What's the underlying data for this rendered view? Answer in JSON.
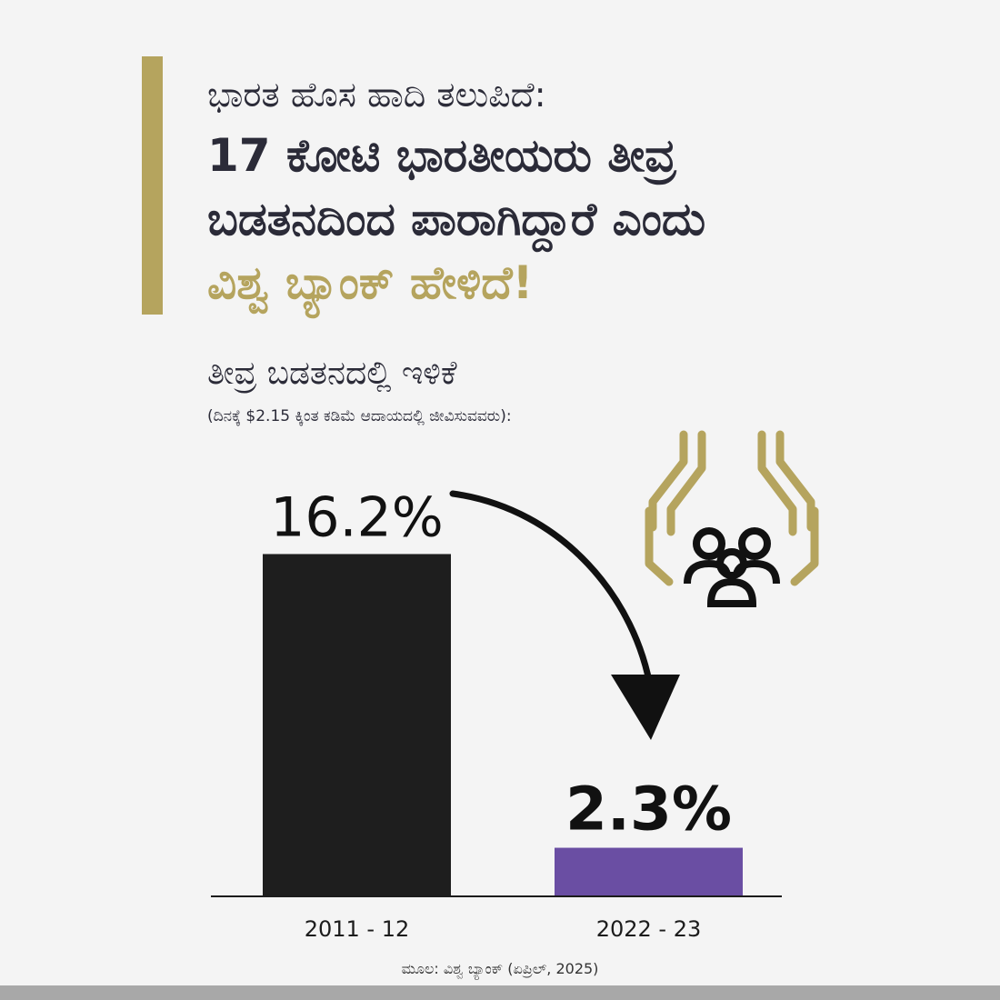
{
  "header": {
    "line1": "ಭಾರತ ಹೊಸ ಹಾದಿ ತಲುಪಿದೆ:",
    "line2": "17 ಕೋಟಿ ಭಾರತೀಯರು ತೀವ್ರ",
    "line3": "ಬಡತನದಿಂದ ಪಾರಾಗಿದ್ದಾರೆ ಎಂದು",
    "line4": "ವಿಶ್ವ ಬ್ಯಾಂಕ್ ಹೇಳಿದೆ!"
  },
  "subtitle": "ತೀವ್ರ ಬಡತನದಲ್ಲಿ ಇಳಿಕೆ",
  "subnote": "(ದಿನಕ್ಕೆ $2.15 ಕ್ಕಿಂತ ಕಡಿಮೆ ಆದಾಯದಲ್ಲಿ ಜೀವಿಸುವವರು):",
  "source": "ಮೂಲ: ವಿಶ್ವ ಬ್ಯಾಂಕ್ (ಏಪ್ರಿಲ್, 2025)",
  "colors": {
    "accent": "#b5a45e",
    "bar1": "#1e1e1e",
    "bar2": "#6a4ea3",
    "text": "#2b2b38"
  },
  "icons": {
    "accent_bar": "gold-vertical-bar",
    "illustration": "hands-protecting-people-icon",
    "arrow": "curved-down-arrow"
  },
  "chart_data": {
    "type": "bar",
    "categories": [
      "2011 - 12",
      "2022 - 23"
    ],
    "values": [
      16.2,
      2.3
    ],
    "value_labels": [
      "16.2%",
      "2.3%"
    ],
    "ylim": [
      0,
      18.5
    ],
    "grid": false,
    "legend": "none"
  }
}
